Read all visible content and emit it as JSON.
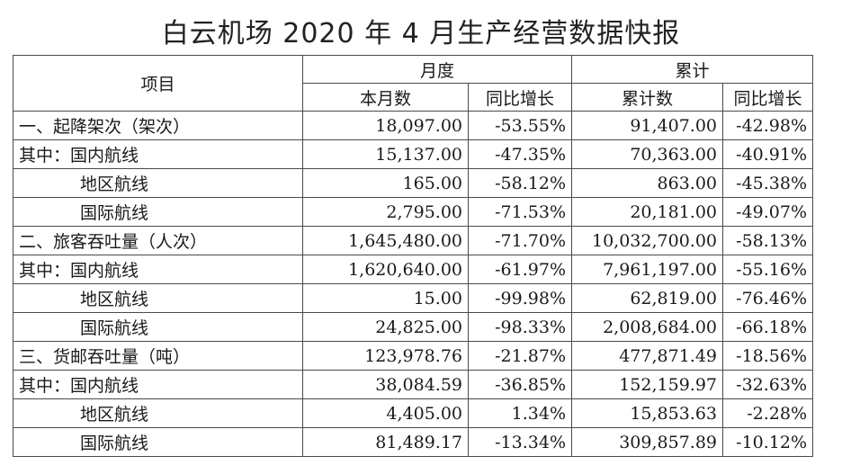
{
  "title": "白云机场 2020 年 4 月生产经营数据快报",
  "headers": {
    "item": "项目",
    "monthly": "月度",
    "cumulative": "累计",
    "this_month": "本月数",
    "yoy_growth_1": "同比增长",
    "cumulative_count": "累计数",
    "yoy_growth_2": "同比增长"
  },
  "rows": [
    {
      "label": "一、起降架次（架次）",
      "indent": false,
      "month": "18,097.00",
      "month_yoy": "-53.55%",
      "cum": "91,407.00",
      "cum_yoy": "-42.98%"
    },
    {
      "label": "其中：国内航线",
      "indent": false,
      "month": "15,137.00",
      "month_yoy": "-47.35%",
      "cum": "70,363.00",
      "cum_yoy": "-40.91%"
    },
    {
      "label": "地区航线",
      "indent": true,
      "month": "165.00",
      "month_yoy": "-58.12%",
      "cum": "863.00",
      "cum_yoy": "-45.38%"
    },
    {
      "label": "国际航线",
      "indent": true,
      "month": "2,795.00",
      "month_yoy": "-71.53%",
      "cum": "20,181.00",
      "cum_yoy": "-49.07%"
    },
    {
      "label": "二、旅客吞吐量（人次）",
      "indent": false,
      "month": "1,645,480.00",
      "month_yoy": "-71.70%",
      "cum": "10,032,700.00",
      "cum_yoy": "-58.13%"
    },
    {
      "label": "其中：国内航线",
      "indent": false,
      "month": "1,620,640.00",
      "month_yoy": "-61.97%",
      "cum": "7,961,197.00",
      "cum_yoy": "-55.16%"
    },
    {
      "label": "地区航线",
      "indent": true,
      "month": "15.00",
      "month_yoy": "-99.98%",
      "cum": "62,819.00",
      "cum_yoy": "-76.46%"
    },
    {
      "label": "国际航线",
      "indent": true,
      "month": "24,825.00",
      "month_yoy": "-98.33%",
      "cum": "2,008,684.00",
      "cum_yoy": "-66.18%"
    },
    {
      "label": "三、货邮吞吐量（吨）",
      "indent": false,
      "month": "123,978.76",
      "month_yoy": "-21.87%",
      "cum": "477,871.49",
      "cum_yoy": "-18.56%"
    },
    {
      "label": "其中：国内航线",
      "indent": false,
      "month": "38,084.59",
      "month_yoy": "-36.85%",
      "cum": "152,159.97",
      "cum_yoy": "-32.63%"
    },
    {
      "label": "地区航线",
      "indent": true,
      "month": "4,405.00",
      "month_yoy": "1.34%",
      "cum": "15,853.63",
      "cum_yoy": "-2.28%"
    },
    {
      "label": "国际航线",
      "indent": true,
      "month": "81,489.17",
      "month_yoy": "-13.34%",
      "cum": "309,857.89",
      "cum_yoy": "-10.12%"
    }
  ]
}
